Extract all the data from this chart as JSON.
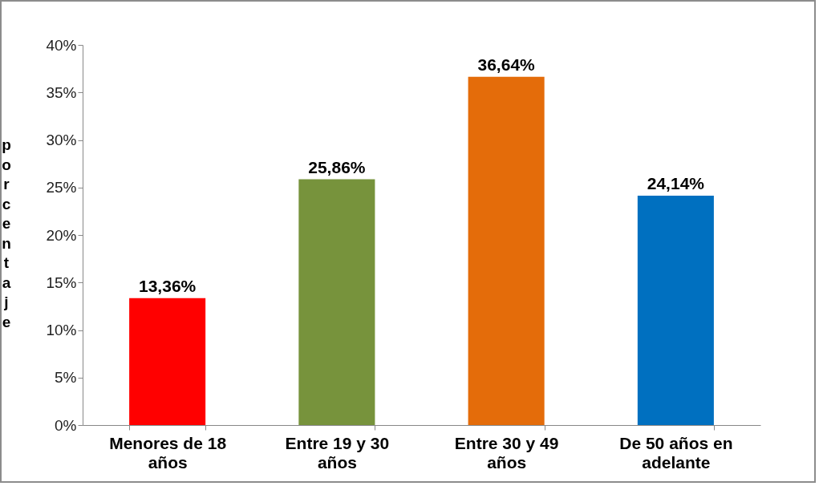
{
  "chart_data": {
    "type": "bar",
    "ylabel": "porcentaje",
    "categories": [
      "Menores de 18 años",
      "Entre 19 y 30 años",
      "Entre 30 y 49 años",
      "De 50 años en adelante"
    ],
    "values": [
      13.36,
      25.86,
      36.64,
      24.14
    ],
    "colors": [
      "#ff0000",
      "#77933c",
      "#e46c0a",
      "#0070c0"
    ],
    "value_labels": [
      "13,36%",
      "25,86%",
      "36,64%",
      "24,14%"
    ],
    "ylim": [
      0,
      40
    ],
    "yticks": [
      {
        "value": 0,
        "label": "0%"
      },
      {
        "value": 5,
        "label": "5%"
      },
      {
        "value": 10,
        "label": "10%"
      },
      {
        "value": 15,
        "label": "15%"
      },
      {
        "value": 20,
        "label": "20%"
      },
      {
        "value": 25,
        "label": "25%"
      },
      {
        "value": 30,
        "label": "30%"
      },
      {
        "value": 35,
        "label": "35%"
      },
      {
        "value": 40,
        "label": "40%"
      }
    ],
    "grid": false
  }
}
